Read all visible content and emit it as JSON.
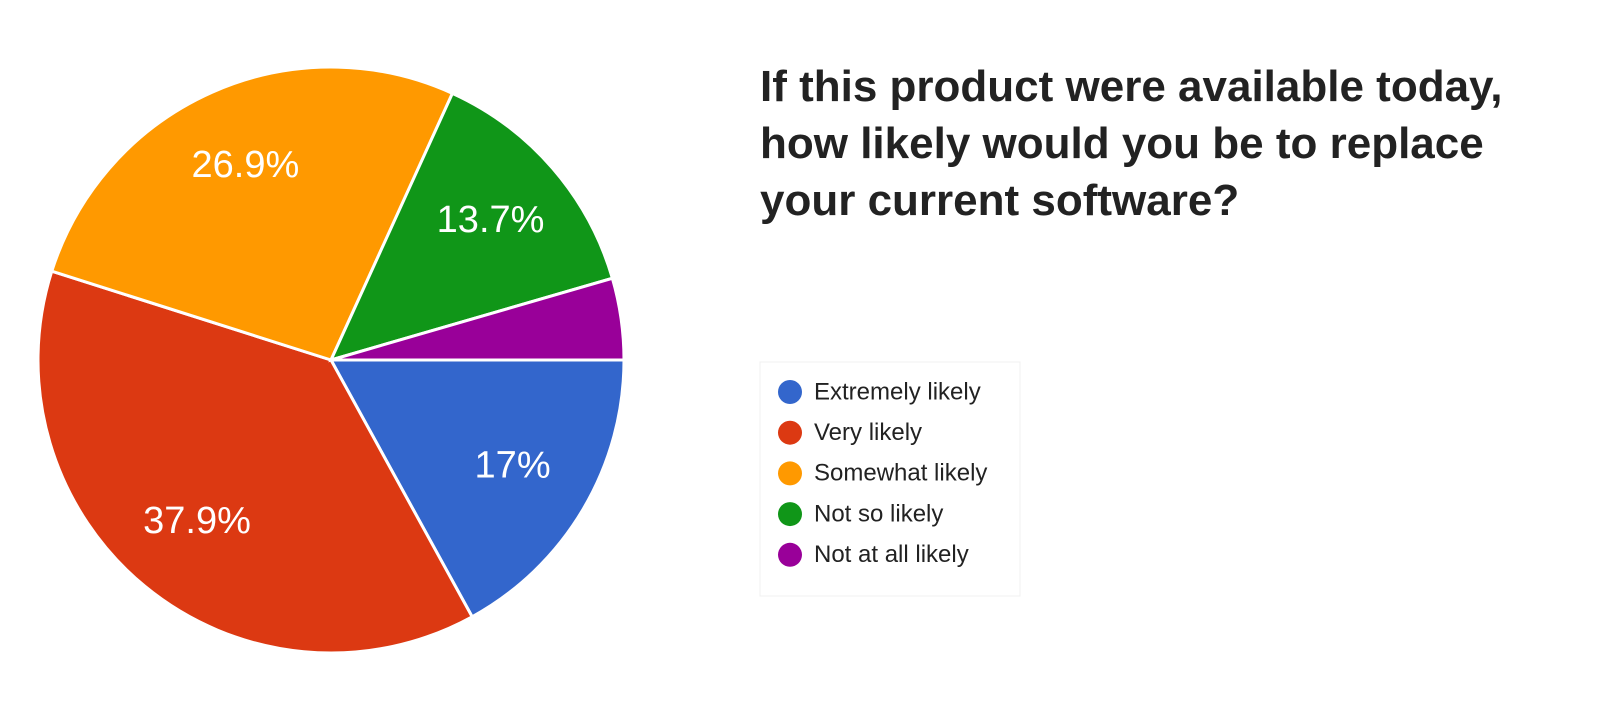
{
  "chart_data": {
    "type": "pie",
    "title": "If this product were available today, how likely would you be to replace your current software?",
    "categories": [
      "Extremely likely",
      "Very likely",
      "Somewhat likely",
      "Not so likely",
      "Not at all likely"
    ],
    "values": [
      17,
      37.9,
      26.9,
      13.7,
      4.5
    ],
    "value_labels": [
      "17%",
      "37.9%",
      "26.9%",
      "13.7%",
      null
    ],
    "colors": [
      "#3366cc",
      "#dc3912",
      "#ff9900",
      "#109618",
      "#990099"
    ],
    "legend": "right"
  }
}
